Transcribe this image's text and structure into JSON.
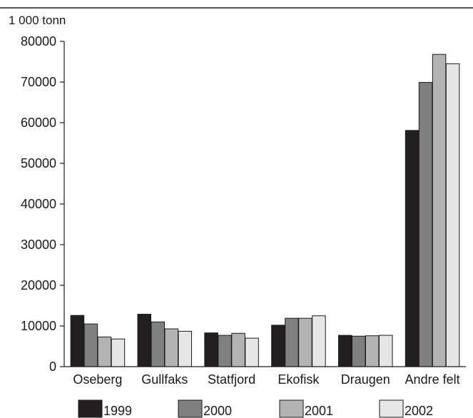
{
  "chart_data": {
    "type": "bar",
    "title": "",
    "unit_label": "1 000 tonn",
    "xlabel": "",
    "ylabel": "",
    "categories": [
      "Oseberg",
      "Gullfaks",
      "Statfjord",
      "Ekofisk",
      "Draugen",
      "Andre felt"
    ],
    "series": [
      {
        "name": "1999",
        "color": "#231f20",
        "values": [
          12600,
          12900,
          8300,
          10200,
          7700,
          58100
        ]
      },
      {
        "name": "2000",
        "color": "#808080",
        "values": [
          10500,
          11000,
          7700,
          11900,
          7500,
          69900
        ]
      },
      {
        "name": "2001",
        "color": "#b3b3b3",
        "values": [
          7300,
          9300,
          8200,
          11900,
          7600,
          76800
        ]
      },
      {
        "name": "2002",
        "color": "#e6e6e6",
        "values": [
          6800,
          8700,
          7000,
          12500,
          7700,
          74500
        ]
      }
    ],
    "yticks": [
      0,
      10000,
      20000,
      30000,
      40000,
      50000,
      60000,
      70000,
      80000
    ],
    "ylim": [
      0,
      80000
    ],
    "grid": false,
    "legend_position": "bottom"
  }
}
